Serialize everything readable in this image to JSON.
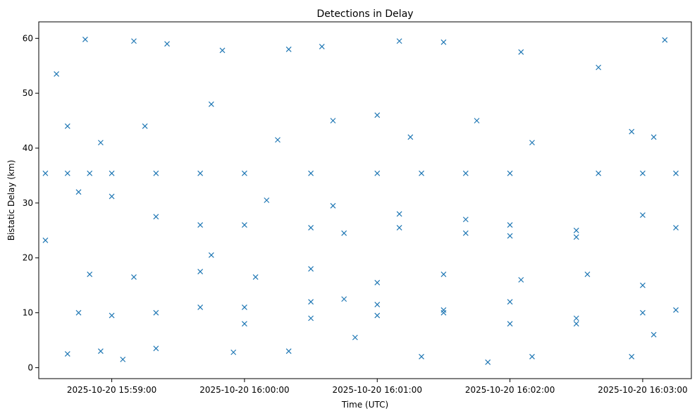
{
  "chart_data": {
    "type": "scatter",
    "title": "Detections in Delay",
    "xlabel": "Time (UTC)",
    "ylabel": "Bistatic Delay (km)",
    "x_unit": "UTC timestamp",
    "xlim": [
      "2025-10-20 15:58:27",
      "2025-10-20 16:03:22"
    ],
    "ylim": [
      -2,
      63
    ],
    "x_ticks": [
      "2025-10-20 15:59:00",
      "2025-10-20 16:00:00",
      "2025-10-20 16:01:00",
      "2025-10-20 16:02:00",
      "2025-10-20 16:03:00"
    ],
    "y_ticks": [
      "0",
      "10",
      "20",
      "30",
      "40",
      "50",
      "60"
    ],
    "grid": false,
    "marker": "x",
    "color": "#1f77b4",
    "series": [
      {
        "x_start": "2025-10-20 15:58:30",
        "x_end": "2025-10-20 16:03:15",
        "points": [
          [
            "2025-10-20 15:58:30",
            35.4
          ],
          [
            "2025-10-20 15:58:40",
            35.4
          ],
          [
            "2025-10-20 15:58:50",
            35.4
          ],
          [
            "2025-10-20 15:59:00",
            35.4
          ],
          [
            "2025-10-20 15:59:20",
            35.4
          ],
          [
            "2025-10-20 15:59:40",
            35.4
          ],
          [
            "2025-10-20 16:00:00",
            35.4
          ],
          [
            "2025-10-20 16:00:30",
            35.4
          ],
          [
            "2025-10-20 16:01:00",
            35.4
          ],
          [
            "2025-10-20 16:01:20",
            35.4
          ],
          [
            "2025-10-20 16:01:40",
            35.4
          ],
          [
            "2025-10-20 16:02:00",
            35.4
          ],
          [
            "2025-10-20 16:02:40",
            35.4
          ],
          [
            "2025-10-20 16:03:00",
            35.4
          ],
          [
            "2025-10-20 16:03:15",
            35.4
          ],
          [
            "2025-10-20 15:58:45",
            32.0
          ],
          [
            "2025-10-20 15:59:00",
            31.2
          ],
          [
            "2025-10-20 15:59:20",
            27.5
          ],
          [
            "2025-10-20 15:59:40",
            26.0
          ],
          [
            "2025-10-20 16:00:00",
            26.0
          ],
          [
            "2025-10-20 16:00:30",
            25.5
          ],
          [
            "2025-10-20 16:00:45",
            24.5
          ],
          [
            "2025-10-20 16:01:10",
            25.5
          ],
          [
            "2025-10-20 16:01:40",
            24.5
          ],
          [
            "2025-10-20 16:02:00",
            24.0
          ],
          [
            "2025-10-20 16:02:30",
            23.8
          ],
          [
            "2025-10-20 16:00:10",
            30.5
          ],
          [
            "2025-10-20 16:00:40",
            29.5
          ],
          [
            "2025-10-20 16:01:10",
            28.0
          ],
          [
            "2025-10-20 16:01:40",
            27.0
          ],
          [
            "2025-10-20 16:02:00",
            26.0
          ],
          [
            "2025-10-20 16:02:30",
            25.0
          ],
          [
            "2025-10-20 16:03:00",
            27.8
          ],
          [
            "2025-10-20 16:03:15",
            25.5
          ],
          [
            "2025-10-20 15:58:30",
            23.2
          ],
          [
            "2025-10-20 15:58:45",
            10.0
          ],
          [
            "2025-10-20 15:59:00",
            9.5
          ],
          [
            "2025-10-20 15:59:20",
            10.0
          ],
          [
            "2025-10-20 15:59:40",
            11.0
          ],
          [
            "2025-10-20 15:59:45",
            20.5
          ],
          [
            "2025-10-20 16:00:00",
            11.0
          ],
          [
            "2025-10-20 16:00:30",
            12.0
          ],
          [
            "2025-10-20 16:00:45",
            12.5
          ],
          [
            "2025-10-20 16:01:00",
            11.5
          ],
          [
            "2025-10-20 16:01:30",
            10.5
          ],
          [
            "2025-10-20 16:02:00",
            12.0
          ],
          [
            "2025-10-20 16:02:30",
            9.0
          ],
          [
            "2025-10-20 16:03:00",
            10.0
          ],
          [
            "2025-10-20 16:03:15",
            10.5
          ],
          [
            "2025-10-20 16:00:00",
            8.0
          ],
          [
            "2025-10-20 16:00:30",
            9.0
          ],
          [
            "2025-10-20 16:01:00",
            9.5
          ],
          [
            "2025-10-20 16:01:30",
            10.0
          ],
          [
            "2025-10-20 16:02:00",
            8.0
          ],
          [
            "2025-10-20 16:02:30",
            8.0
          ],
          [
            "2025-10-20 15:58:35",
            53.5
          ],
          [
            "2025-10-20 15:58:48",
            59.8
          ],
          [
            "2025-10-20 15:59:10",
            59.5
          ],
          [
            "2025-10-20 15:59:25",
            59.0
          ],
          [
            "2025-10-20 15:59:50",
            57.8
          ],
          [
            "2025-10-20 16:00:20",
            58.0
          ],
          [
            "2025-10-20 16:00:35",
            58.5
          ],
          [
            "2025-10-20 16:01:10",
            59.5
          ],
          [
            "2025-10-20 16:01:30",
            59.3
          ],
          [
            "2025-10-20 16:02:05",
            57.5
          ],
          [
            "2025-10-20 16:03:10",
            59.7
          ],
          [
            "2025-10-20 16:02:40",
            54.7
          ],
          [
            "2025-10-20 15:58:40",
            44.0
          ],
          [
            "2025-10-20 15:58:55",
            41.0
          ],
          [
            "2025-10-20 15:59:15",
            44.0
          ],
          [
            "2025-10-20 15:59:45",
            48.0
          ],
          [
            "2025-10-20 16:00:15",
            41.5
          ],
          [
            "2025-10-20 16:00:40",
            45.0
          ],
          [
            "2025-10-20 16:01:00",
            46.0
          ],
          [
            "2025-10-20 16:01:15",
            42.0
          ],
          [
            "2025-10-20 16:01:45",
            45.0
          ],
          [
            "2025-10-20 16:02:10",
            41.0
          ],
          [
            "2025-10-20 16:02:55",
            43.0
          ],
          [
            "2025-10-20 16:03:05",
            42.0
          ],
          [
            "2025-10-20 15:58:40",
            2.5
          ],
          [
            "2025-10-20 15:58:55",
            3.0
          ],
          [
            "2025-10-20 15:59:05",
            1.5
          ],
          [
            "2025-10-20 15:59:20",
            3.5
          ],
          [
            "2025-10-20 15:59:55",
            2.8
          ],
          [
            "2025-10-20 16:00:20",
            3.0
          ],
          [
            "2025-10-20 16:00:50",
            5.5
          ],
          [
            "2025-10-20 16:01:20",
            2.0
          ],
          [
            "2025-10-20 16:01:50",
            1.0
          ],
          [
            "2025-10-20 16:02:10",
            2.0
          ],
          [
            "2025-10-20 16:02:55",
            2.0
          ],
          [
            "2025-10-20 16:03:05",
            6.0
          ],
          [
            "2025-10-20 15:58:50",
            17.0
          ],
          [
            "2025-10-20 15:59:10",
            16.5
          ],
          [
            "2025-10-20 15:59:40",
            17.5
          ],
          [
            "2025-10-20 16:00:05",
            16.5
          ],
          [
            "2025-10-20 16:00:30",
            18.0
          ],
          [
            "2025-10-20 16:01:00",
            15.5
          ],
          [
            "2025-10-20 16:01:30",
            17.0
          ],
          [
            "2025-10-20 16:02:05",
            16.0
          ],
          [
            "2025-10-20 16:02:35",
            17.0
          ],
          [
            "2025-10-20 16:03:00",
            15.0
          ]
        ]
      }
    ]
  }
}
